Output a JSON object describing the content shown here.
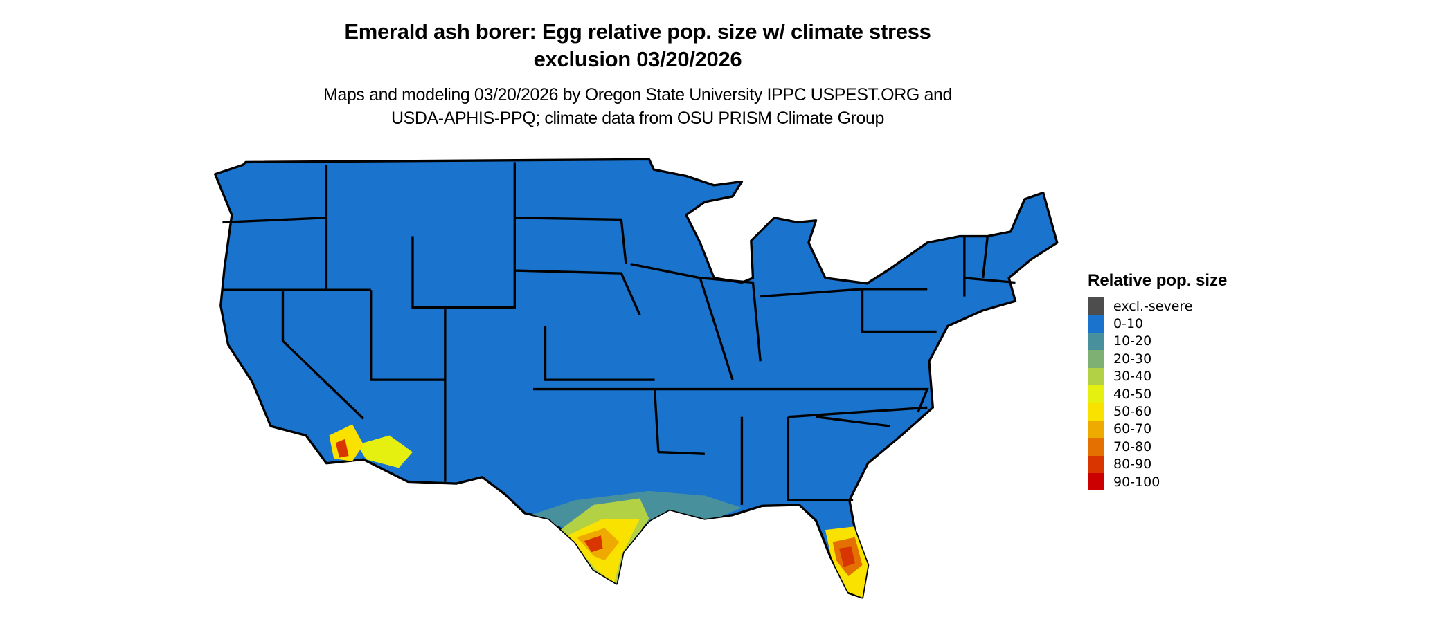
{
  "title_line1": "Emerald ash borer: Egg relative pop. size w/ climate stress",
  "title_line2": "exclusion 03/20/2026",
  "subtitle_line1": "Maps and modeling 03/20/2026 by Oregon State University IPPC USPEST.ORG and",
  "subtitle_line2": "USDA-APHIS-PPQ; climate data from OSU PRISM Climate Group",
  "legend": {
    "title": "Relative pop. size",
    "items": [
      {
        "label": "excl.-severe",
        "color": "#4d4d4d"
      },
      {
        "label": "0-10",
        "color": "#1a73cc"
      },
      {
        "label": "10-20",
        "color": "#48919c"
      },
      {
        "label": "20-30",
        "color": "#7db072"
      },
      {
        "label": "30-40",
        "color": "#b3d145"
      },
      {
        "label": "40-50",
        "color": "#e5f011"
      },
      {
        "label": "50-60",
        "color": "#f9e100"
      },
      {
        "label": "60-70",
        "color": "#eeaa00"
      },
      {
        "label": "70-80",
        "color": "#e37000"
      },
      {
        "label": "80-90",
        "color": "#d83500"
      },
      {
        "label": "90-100",
        "color": "#cc0000"
      }
    ]
  },
  "map": {
    "base_color": "#1a73cc",
    "border_color": "#000000"
  }
}
